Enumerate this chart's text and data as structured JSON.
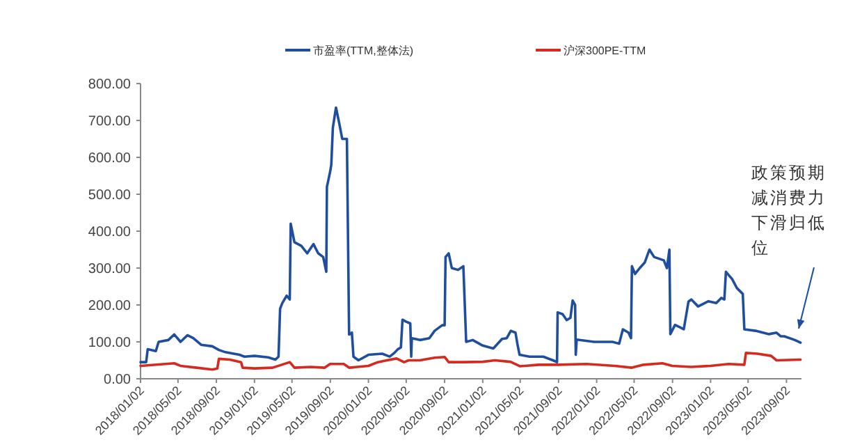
{
  "chart_data": {
    "type": "line",
    "xlim": [
      "2018-01-02",
      "2023-10-20"
    ],
    "xticks": [
      {
        "value": "2018-01-02",
        "label": "2018/01/02"
      },
      {
        "value": "2018-05-02",
        "label": "2018/05/02"
      },
      {
        "value": "2018-09-02",
        "label": "2018/09/02"
      },
      {
        "value": "2019-01-02",
        "label": "2019/01/02"
      },
      {
        "value": "2019-05-02",
        "label": "2019/05/02"
      },
      {
        "value": "2019-09-02",
        "label": "2019/09/02"
      },
      {
        "value": "2020-01-02",
        "label": "2020/01/02"
      },
      {
        "value": "2020-05-02",
        "label": "2020/05/02"
      },
      {
        "value": "2020-09-02",
        "label": "2020/09/02"
      },
      {
        "value": "2021-01-02",
        "label": "2021/01/02"
      },
      {
        "value": "2021-05-02",
        "label": "2021/05/02"
      },
      {
        "value": "2021-09-02",
        "label": "2021/09/02"
      },
      {
        "value": "2022-01-02",
        "label": "2022/01/02"
      },
      {
        "value": "2022-05-02",
        "label": "2022/05/02"
      },
      {
        "value": "2022-09-02",
        "label": "2022/09/02"
      },
      {
        "value": "2023-01-02",
        "label": "2023/01/02"
      },
      {
        "value": "2023-05-02",
        "label": "2023/05/02"
      },
      {
        "value": "2023-09-02",
        "label": "2023/09/02"
      }
    ],
    "ylim": [
      0,
      800
    ],
    "yticks": [
      {
        "value": 0,
        "label": "0.00"
      },
      {
        "value": 100,
        "label": "100.00"
      },
      {
        "value": 200,
        "label": "200.00"
      },
      {
        "value": 300,
        "label": "300.00"
      },
      {
        "value": 400,
        "label": "400.00"
      },
      {
        "value": 500,
        "label": "500.00"
      },
      {
        "value": 600,
        "label": "600.00"
      },
      {
        "value": 700,
        "label": "700.00"
      },
      {
        "value": 800,
        "label": "800.00"
      }
    ],
    "grid": false,
    "legend": "top",
    "marker": "none",
    "line_style": "solid",
    "series": [
      {
        "name": "市盈率(TTM,整体法)",
        "color": "#1f4e9f",
        "x": [
          "2018-01-02",
          "2018-01-20",
          "2018-01-25",
          "2018-02-20",
          "2018-03-01",
          "2018-04-01",
          "2018-04-20",
          "2018-05-10",
          "2018-06-01",
          "2018-06-20",
          "2018-07-15",
          "2018-08-20",
          "2018-09-10",
          "2018-10-01",
          "2018-11-15",
          "2018-12-01",
          "2019-01-02",
          "2019-02-15",
          "2019-03-10",
          "2019-03-20",
          "2019-03-25",
          "2019-04-01",
          "2019-04-15",
          "2019-04-25",
          "2019-04-28",
          "2019-05-10",
          "2019-06-01",
          "2019-06-20",
          "2019-07-10",
          "2019-07-25",
          "2019-08-10",
          "2019-08-20",
          "2019-08-22",
          "2019-09-01",
          "2019-09-05",
          "2019-09-10",
          "2019-09-20",
          "2019-10-01",
          "2019-10-10",
          "2019-10-25",
          "2019-11-01",
          "2019-11-10",
          "2019-11-15",
          "2019-12-01",
          "2020-01-02",
          "2020-02-15",
          "2020-03-10",
          "2020-03-25",
          "2020-04-05",
          "2020-04-15",
          "2020-04-20",
          "2020-05-01",
          "2020-05-15",
          "2020-05-18",
          "2020-05-20",
          "2020-06-15",
          "2020-07-15",
          "2020-08-01",
          "2020-08-25",
          "2020-09-02",
          "2020-09-05",
          "2020-09-15",
          "2020-09-25",
          "2020-10-15",
          "2020-11-01",
          "2020-11-10",
          "2020-12-01",
          "2021-01-02",
          "2021-02-05",
          "2021-03-05",
          "2021-03-20",
          "2021-04-02",
          "2021-04-17",
          "2021-04-23",
          "2021-04-30",
          "2021-06-01",
          "2021-07-15",
          "2021-08-15",
          "2021-08-28",
          "2021-08-30",
          "2021-09-15",
          "2021-09-28",
          "2021-10-10",
          "2021-10-17",
          "2021-10-25",
          "2021-10-27",
          "2021-10-30",
          "2021-12-25",
          "2022-02-22",
          "2022-03-15",
          "2022-03-27",
          "2022-04-14",
          "2022-04-22",
          "2022-04-25",
          "2022-05-05",
          "2022-05-20",
          "2022-06-05",
          "2022-06-20",
          "2022-07-05",
          "2022-08-05",
          "2022-08-15",
          "2022-08-23",
          "2022-08-26",
          "2022-09-10",
          "2022-09-25",
          "2022-10-08",
          "2022-10-23",
          "2022-11-01",
          "2022-11-23",
          "2022-12-26",
          "2023-01-20",
          "2023-02-05",
          "2023-02-15",
          "2023-02-20",
          "2023-03-12",
          "2023-03-27",
          "2023-04-15",
          "2023-04-20",
          "2023-05-26",
          "2023-07-08",
          "2023-08-01",
          "2023-08-15",
          "2023-08-26",
          "2023-09-29",
          "2023-10-17"
        ],
        "values": [
          45,
          45,
          80,
          75,
          100,
          105,
          120,
          100,
          118,
          110,
          92,
          88,
          78,
          72,
          65,
          60,
          62,
          58,
          52,
          60,
          190,
          205,
          225,
          215,
          420,
          370,
          360,
          340,
          365,
          340,
          330,
          290,
          520,
          560,
          580,
          680,
          735,
          690,
          650,
          650,
          120,
          125,
          60,
          50,
          65,
          68,
          60,
          70,
          80,
          85,
          160,
          155,
          150,
          60,
          110,
          105,
          110,
          130,
          145,
          145,
          330,
          340,
          300,
          295,
          305,
          100,
          105,
          90,
          82,
          108,
          110,
          130,
          125,
          95,
          65,
          60,
          60,
          50,
          45,
          180,
          175,
          159,
          165,
          212,
          200,
          65,
          106,
          100,
          100,
          95,
          134,
          125,
          110,
          305,
          284,
          300,
          315,
          350,
          330,
          321,
          300,
          350,
          121,
          146,
          140,
          134,
          209,
          215,
          196,
          210,
          205,
          219,
          215,
          290,
          270,
          246,
          230,
          134,
          130,
          121,
          125,
          115,
          115,
          105,
          98
        ]
      },
      {
        "name": "沪深300PE-TTM",
        "color": "#d42a20",
        "x": [
          "2018-01-02",
          "2018-04-20",
          "2018-05-10",
          "2018-07-01",
          "2018-08-20",
          "2018-09-05",
          "2018-09-10",
          "2018-10-15",
          "2018-11-20",
          "2018-11-25",
          "2019-01-02",
          "2019-03-01",
          "2019-04-25",
          "2019-05-10",
          "2019-07-01",
          "2019-08-15",
          "2019-09-01",
          "2019-10-15",
          "2019-11-01",
          "2020-01-02",
          "2020-02-01",
          "2020-03-01",
          "2020-04-01",
          "2020-04-25",
          "2020-05-10",
          "2020-06-15",
          "2020-08-01",
          "2020-09-02",
          "2020-09-15",
          "2020-11-01",
          "2021-01-02",
          "2021-02-10",
          "2021-04-01",
          "2021-05-01",
          "2021-07-01",
          "2021-09-01",
          "2021-12-01",
          "2022-03-01",
          "2022-04-25",
          "2022-06-01",
          "2022-08-01",
          "2022-09-01",
          "2022-11-01",
          "2023-01-01",
          "2023-03-01",
          "2023-04-20",
          "2023-04-25",
          "2023-06-01",
          "2023-07-15",
          "2023-08-01",
          "2023-10-17"
        ],
        "values": [
          35,
          42,
          35,
          30,
          25,
          28,
          54,
          52,
          45,
          30,
          28,
          30,
          45,
          30,
          32,
          30,
          40,
          40,
          30,
          35,
          45,
          50,
          55,
          45,
          50,
          50,
          57,
          59,
          45,
          45,
          46,
          50,
          46,
          34,
          38,
          38,
          40,
          35,
          30,
          38,
          42,
          35,
          32,
          35,
          40,
          38,
          70,
          68,
          62,
          50,
          52
        ]
      }
    ],
    "annotations": [
      "政策预期减消费力下滑归低位"
    ]
  }
}
